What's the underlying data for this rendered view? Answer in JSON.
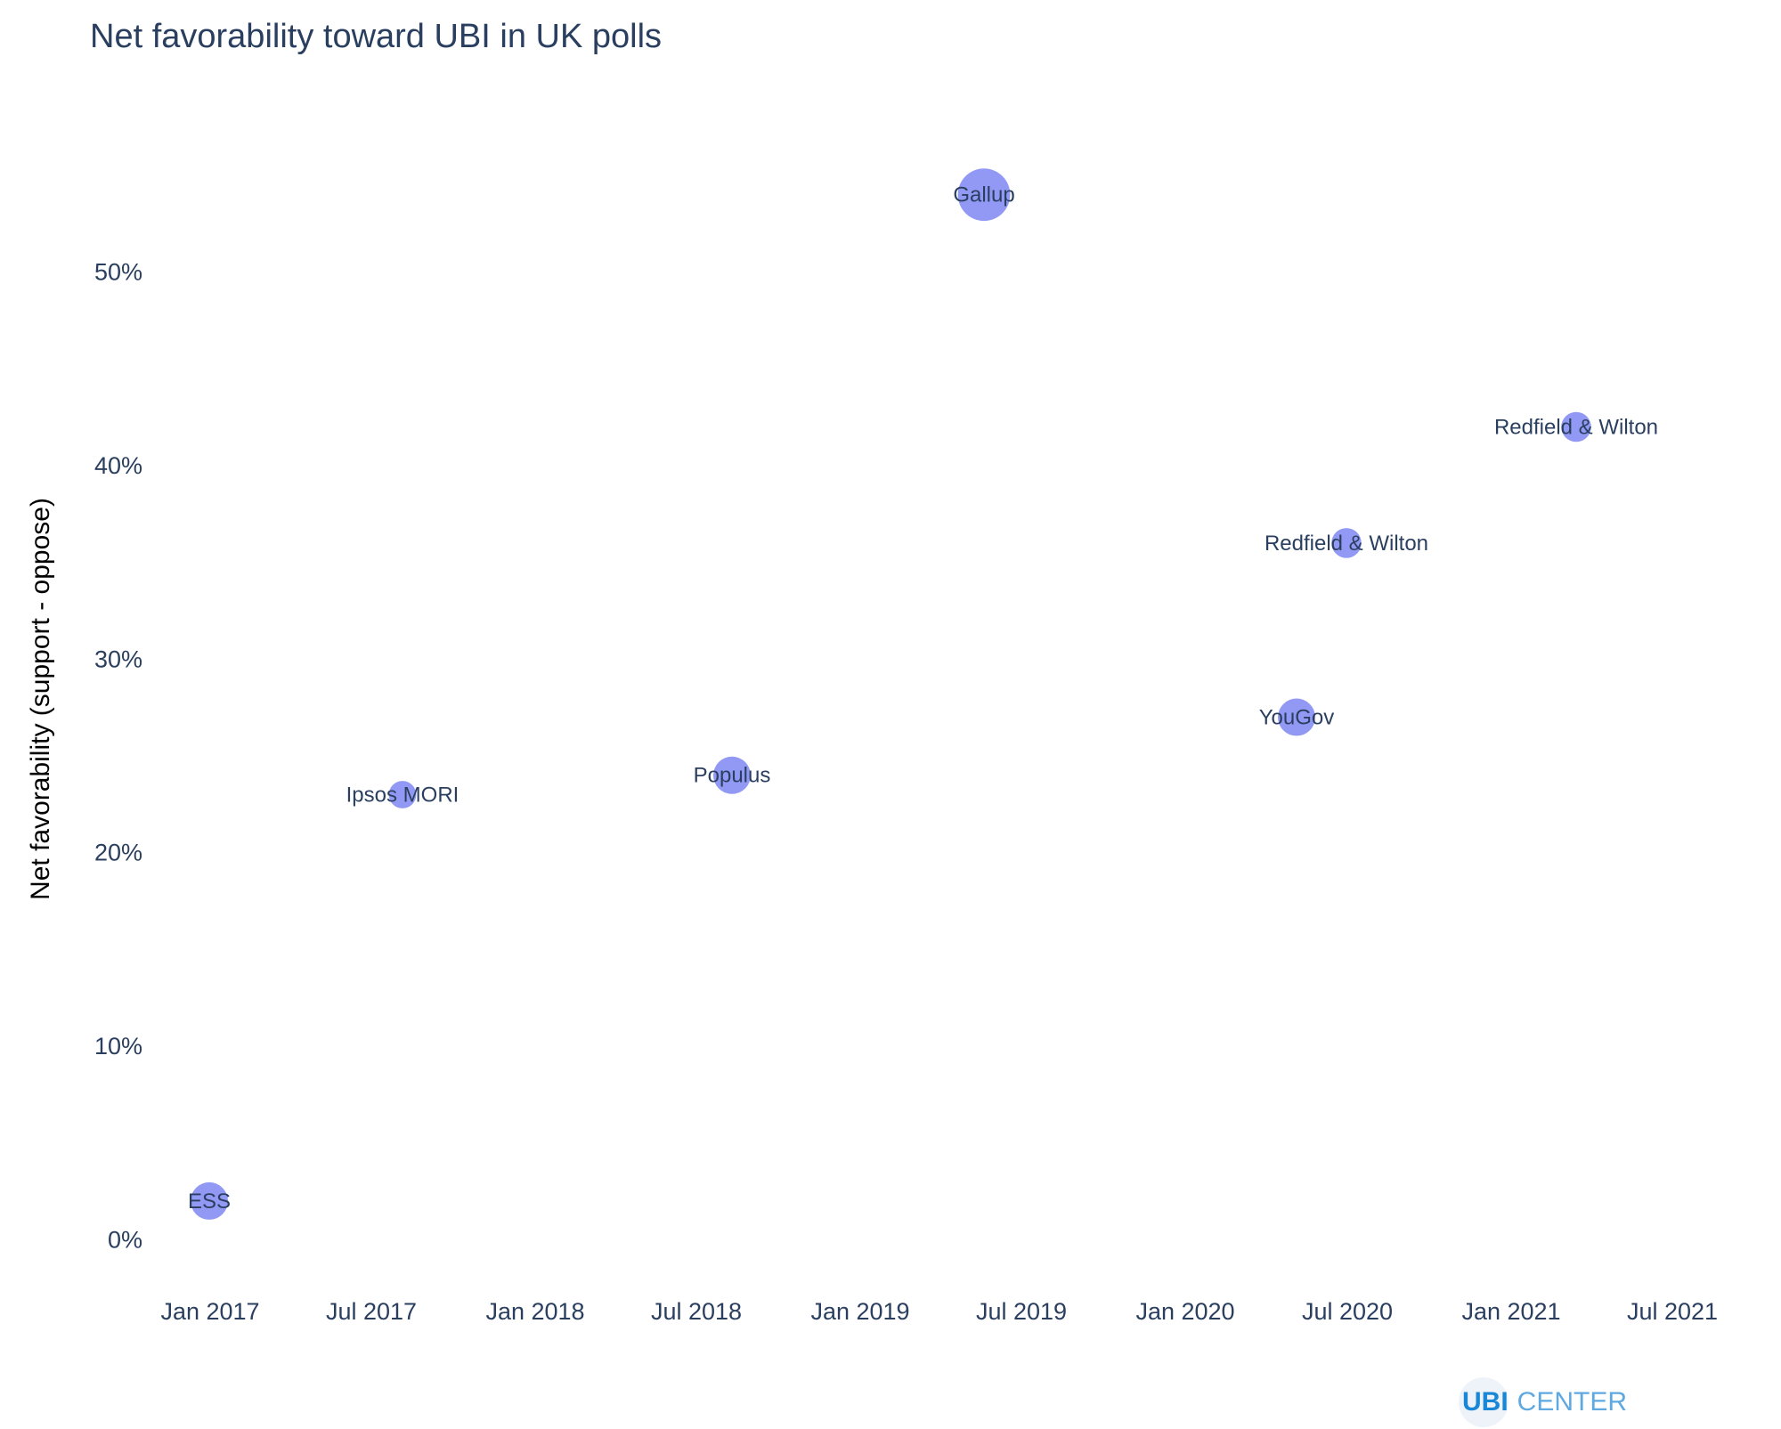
{
  "chart_data": {
    "type": "scatter",
    "title": "Net favorability toward UBI in UK polls",
    "ylabel": "Net favorability (support - oppose)",
    "xlabel": "",
    "x_axis_type": "date",
    "xlim": [
      "2016-11-01",
      "2021-09-01"
    ],
    "ylim": [
      -1.5,
      59
    ],
    "x_ticks": [
      {
        "date": "2017-01-01",
        "label": "Jan 2017"
      },
      {
        "date": "2017-07-01",
        "label": "Jul 2017"
      },
      {
        "date": "2018-01-01",
        "label": "Jan 2018"
      },
      {
        "date": "2018-07-01",
        "label": "Jul 2018"
      },
      {
        "date": "2019-01-01",
        "label": "Jan 2019"
      },
      {
        "date": "2019-07-01",
        "label": "Jul 2019"
      },
      {
        "date": "2020-01-01",
        "label": "Jan 2020"
      },
      {
        "date": "2020-07-01",
        "label": "Jul 2020"
      },
      {
        "date": "2021-01-01",
        "label": "Jan 2021"
      },
      {
        "date": "2021-07-01",
        "label": "Jul 2021"
      }
    ],
    "y_ticks": [
      {
        "value": 0,
        "label": "0%"
      },
      {
        "value": 10,
        "label": "10%"
      },
      {
        "value": 20,
        "label": "20%"
      },
      {
        "value": 30,
        "label": "30%"
      },
      {
        "value": 40,
        "label": "40%"
      },
      {
        "value": 50,
        "label": "50%"
      }
    ],
    "grid": false,
    "marker_color": "#8c93f4",
    "text_color": "#2a3f5f",
    "points": [
      {
        "label": "ESS",
        "date": "2016-12-31",
        "value": 2,
        "size": 1.5
      },
      {
        "label": "Ipsos MORI",
        "date": "2017-08-05",
        "value": 23,
        "size": 1.1
      },
      {
        "label": "Populus",
        "date": "2018-08-10",
        "value": 24,
        "size": 1.5
      },
      {
        "label": "Gallup",
        "date": "2019-05-20",
        "value": 54,
        "size": 2.1
      },
      {
        "label": "YouGov",
        "date": "2020-05-05",
        "value": 27,
        "size": 1.5
      },
      {
        "label": "Redfield & Wilton",
        "date": "2020-06-30",
        "value": 36,
        "size": 1.2
      },
      {
        "label": "Redfield & Wilton",
        "date": "2021-03-15",
        "value": 42,
        "size": 1.2
      }
    ]
  },
  "logo": {
    "part1": "UBI",
    "part2": "CENTER"
  }
}
